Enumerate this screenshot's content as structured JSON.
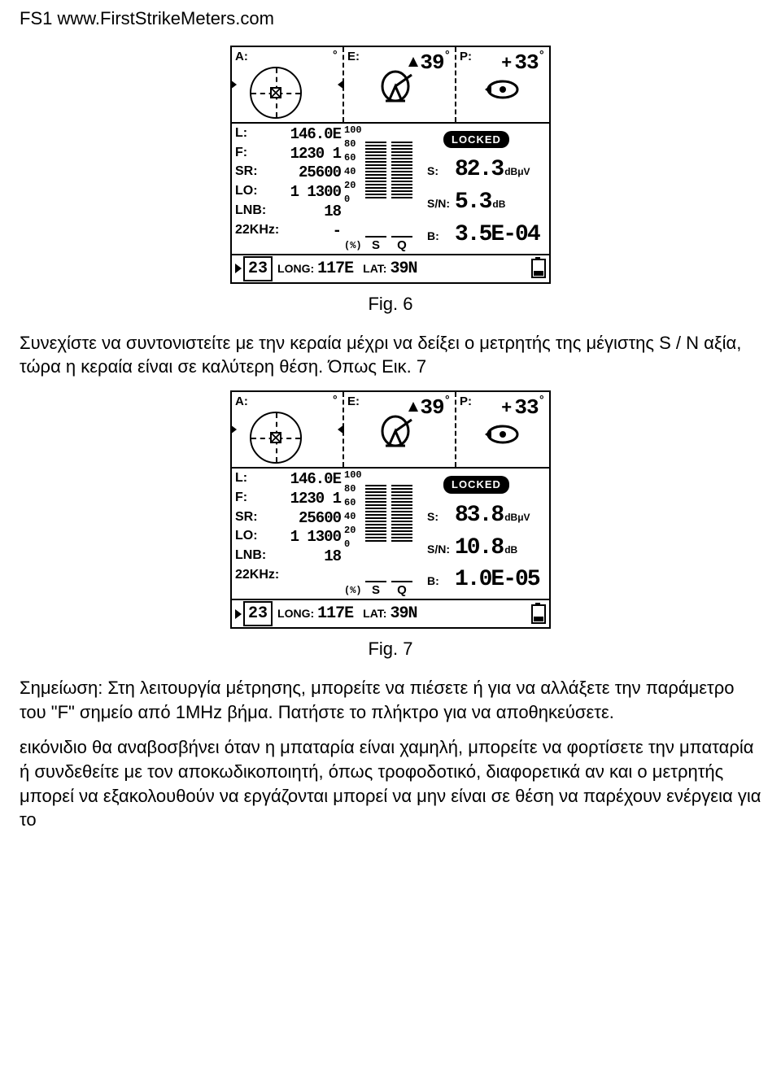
{
  "header": "FS1 www.FirstStrikeMeters.com",
  "fig6_caption": "Fig. 6",
  "para1": "Συνεχίστε να συντονιστείτε με την κεραία μέχρι να δείξει ο μετρητής της μέγιστης S / N αξία, τώρα η κεραία είναι σε καλύτερη θέση. Όπως Εικ. 7",
  "fig7_caption": "Fig. 7",
  "para2": "Σημείωση: Στη λειτουργία μέτρησης, μπορείτε να πιέσετε ή για να αλλάξετε την παράμετρο του \"F\" σημείο από 1MHz βήμα. Πατήστε το πλήκτρο για να αποθηκεύσετε.",
  "para3": "εικόνιδιο θα αναβοσβήνει όταν η μπαταρία είναι χαμηλή, μπορείτε να φορτίσετε την μπαταρία ή συνδεθείτε με τον αποκωδικοποιητή, όπως τροφοδοτικό, διαφορετικά αν και ο μετρητής μπορεί να εξακολουθούν να εργάζονται μπορεί να μην είναι σε θέση να παρέχουν ενέργεια για το",
  "lcd6": {
    "top": {
      "A_label": "A:",
      "A_deg": "°",
      "E_label": "E:",
      "E_val": "39",
      "E_deg": "°",
      "P_label": "P:",
      "P_val": "33",
      "P_deg": "°"
    },
    "left": {
      "L_label": "L:",
      "L_val": "146.0E",
      "F_label": "F:",
      "F_val": "1230 1",
      "SR_label": "SR:",
      "SR_val": "25600",
      "LO_label": "LO:",
      "LO_val": "1 1300",
      "LNB_label": "LNB:",
      "LNB_val": "18",
      "K_label": "22KHz:",
      "K_val": "-"
    },
    "scale": [
      "100",
      "80",
      "60",
      "40",
      "20",
      "0"
    ],
    "pct": "(%)",
    "bar_letters": [
      "S",
      "Q"
    ],
    "bars": {
      "S_fill": 80,
      "Q_fill": 80
    },
    "right": {
      "locked": "LOCKED",
      "S_label": "S:",
      "S_val": "82.3",
      "S_unit": "dBμV",
      "SN_label": "S/N:",
      "SN_val": "5.3",
      "SN_unit": "dB",
      "B_label": "B:",
      "B_val": "3.5E-04"
    },
    "foot": {
      "idx": "23",
      "LONG_label": "LONG:",
      "LONG_val": "117E",
      "LAT_label": "LAT:",
      "LAT_val": "39N"
    }
  },
  "lcd7": {
    "top": {
      "A_label": "A:",
      "A_deg": "°",
      "E_label": "E:",
      "E_val": "39",
      "E_deg": "°",
      "P_label": "P:",
      "P_val": "33",
      "P_deg": "°"
    },
    "left": {
      "L_label": "L:",
      "L_val": "146.0E",
      "F_label": "F:",
      "F_val": "1230 1",
      "SR_label": "SR:",
      "SR_val": "25600",
      "LO_label": "LO:",
      "LO_val": "1 1300",
      "LNB_label": "LNB:",
      "LNB_val": "18",
      "K_label": "22KHz:",
      "K_val": ""
    },
    "scale": [
      "100",
      "80",
      "60",
      "40",
      "20",
      "0"
    ],
    "pct": "(%)",
    "bar_letters": [
      "S",
      "Q"
    ],
    "bars": {
      "S_fill": 82,
      "Q_fill": 82
    },
    "right": {
      "locked": "LOCKED",
      "S_label": "S:",
      "S_val": "83.8",
      "S_unit": "dBμV",
      "SN_label": "S/N:",
      "SN_val": "10.8",
      "SN_unit": "dB",
      "B_label": "B:",
      "B_val": "1.0E-05"
    },
    "foot": {
      "idx": "23",
      "LONG_label": "LONG:",
      "LONG_val": "117E",
      "LAT_label": "LAT:",
      "LAT_val": "39N"
    }
  }
}
